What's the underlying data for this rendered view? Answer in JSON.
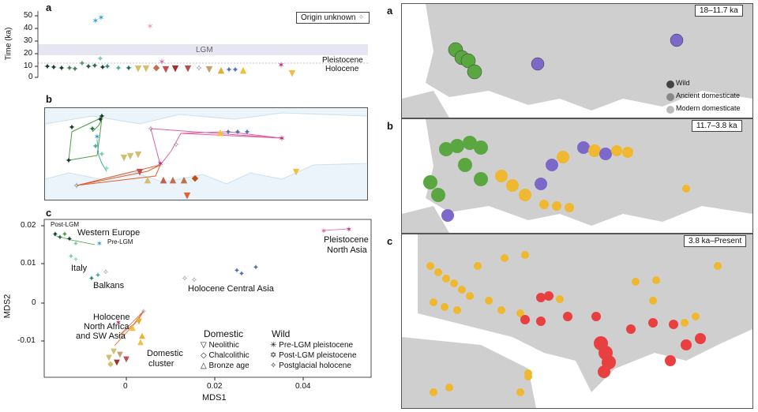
{
  "left": {
    "panel_a": {
      "letter": "a",
      "y_axis_label": "Time (ka)",
      "y_ticks": [
        "50",
        "40",
        "30",
        "20",
        "10",
        "0"
      ],
      "lgm_label": "LGM",
      "pleistocene_label": "Pleistocene",
      "holocene_label": "Holocene",
      "legend_label": "Origin unknown"
    },
    "panel_b": {
      "letter": "b"
    },
    "panel_c": {
      "letter": "c",
      "x_axis_label": "MDS1",
      "y_axis_label": "MDS2",
      "x_ticks": [
        "0",
        "0.02",
        "0.04"
      ],
      "y_ticks": [
        "0.02",
        "0.01",
        "0",
        "-0.01"
      ],
      "cluster_labels": {
        "post_lgm": "Post-LGM",
        "western_europe": "Western Europe",
        "pre_lgm": "Pre-LGM",
        "italy": "Italy",
        "balkans": "Balkans",
        "holocene_central_asia": "Holocene Central Asia",
        "pleistocene": "Pleistocene",
        "north_asia": "North Asia",
        "holocene": "Holocene",
        "north_africa": "North Africa",
        "and_sw_asia": "and SW Asia",
        "domestic": "Domestic",
        "cluster": "cluster"
      },
      "legend": {
        "domestic_title": "Domestic",
        "wild_title": "Wild",
        "neolithic": "Neolithic",
        "chalcolithic": "Chalcolithic",
        "bronze_age": "Bronze age",
        "pre_lgm": "Pre-LGM pleistocene",
        "post_lgm": "Post-LGM pleistocene",
        "postglacial": "Postglacial holocene"
      }
    }
  },
  "right": {
    "panel_a": {
      "letter": "a",
      "time_label": "18–11.7 ka",
      "legend": {
        "wild": "Wild",
        "ancient": "Ancient domesticate",
        "modern": "Modern domesticate"
      }
    },
    "panel_b": {
      "letter": "b",
      "time_label": "11.7–3.8 ka"
    },
    "panel_c": {
      "letter": "c",
      "time_label": "3.8 ka–Present"
    }
  },
  "colors": {
    "wild_green": "#5aa640",
    "ancient_purple": "#7b68c8",
    "modern_orange": "#f0b830",
    "red": "#e84040",
    "land_grey": "#cfcfcf",
    "sea_light": "#ffffff"
  }
}
